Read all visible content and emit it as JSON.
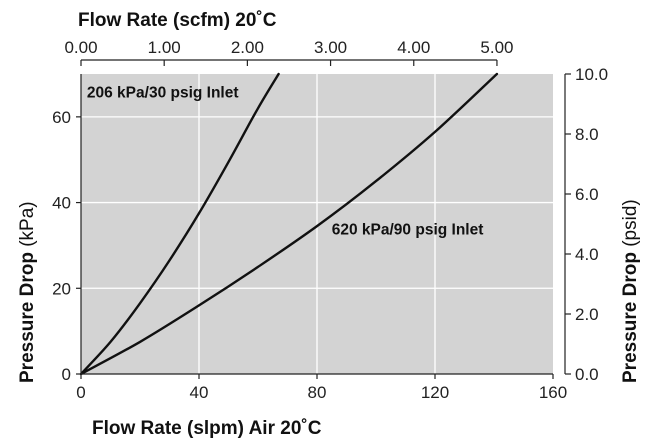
{
  "chart_data": {
    "type": "line",
    "title": "",
    "top_axis": {
      "label": "Flow Rate (scfm) 20˚C",
      "ticks": [
        "0.00",
        "1.00",
        "2.00",
        "3.00",
        "4.00",
        "5.00"
      ],
      "tick_values": [
        0,
        1,
        2,
        3,
        4,
        5
      ]
    },
    "bottom_axis": {
      "label": "Flow Rate (slpm) Air 20˚C",
      "ticks": [
        "0",
        "40",
        "80",
        "120",
        "160"
      ],
      "tick_values": [
        0,
        40,
        80,
        120,
        160
      ],
      "range": [
        0,
        160
      ]
    },
    "left_axis": {
      "label_bold": "Pressure Drop",
      "label_unit": " (kPa)",
      "ticks": [
        "0",
        "20",
        "40",
        "60"
      ],
      "tick_values": [
        0,
        20,
        40,
        60
      ],
      "range": [
        0,
        70
      ]
    },
    "right_axis": {
      "label_bold": "Pressure Drop",
      "label_unit": " (psid)",
      "ticks": [
        "0.0",
        "2.0",
        "4.0",
        "6.0",
        "8.0",
        "10.0"
      ],
      "tick_values": [
        0,
        2,
        4,
        6,
        8,
        10
      ],
      "range": [
        0,
        10
      ]
    },
    "grid": true,
    "colors": {
      "plot_bg": "#d3d3d3",
      "grid": "#ffffff",
      "line": "#111111"
    },
    "series": [
      {
        "name": "206 kPa/30 psig Inlet",
        "x": [
          0,
          10,
          20,
          30,
          40,
          50,
          60,
          67
        ],
        "y": [
          0,
          7.5,
          16.5,
          26.5,
          37.5,
          49.5,
          62,
          70
        ]
      },
      {
        "name": "620 kPa/90 psig Inlet",
        "x": [
          0,
          20,
          40,
          60,
          80,
          100,
          120,
          141
        ],
        "y": [
          0,
          7.5,
          16,
          25,
          34.5,
          45,
          56.5,
          70
        ]
      }
    ],
    "annotations": [
      {
        "text": "206 kPa/30 psig Inlet",
        "x": 2,
        "y": 64.5
      },
      {
        "text": "620 kPa/90 psig Inlet",
        "x": 85,
        "y": 32.5
      }
    ]
  }
}
